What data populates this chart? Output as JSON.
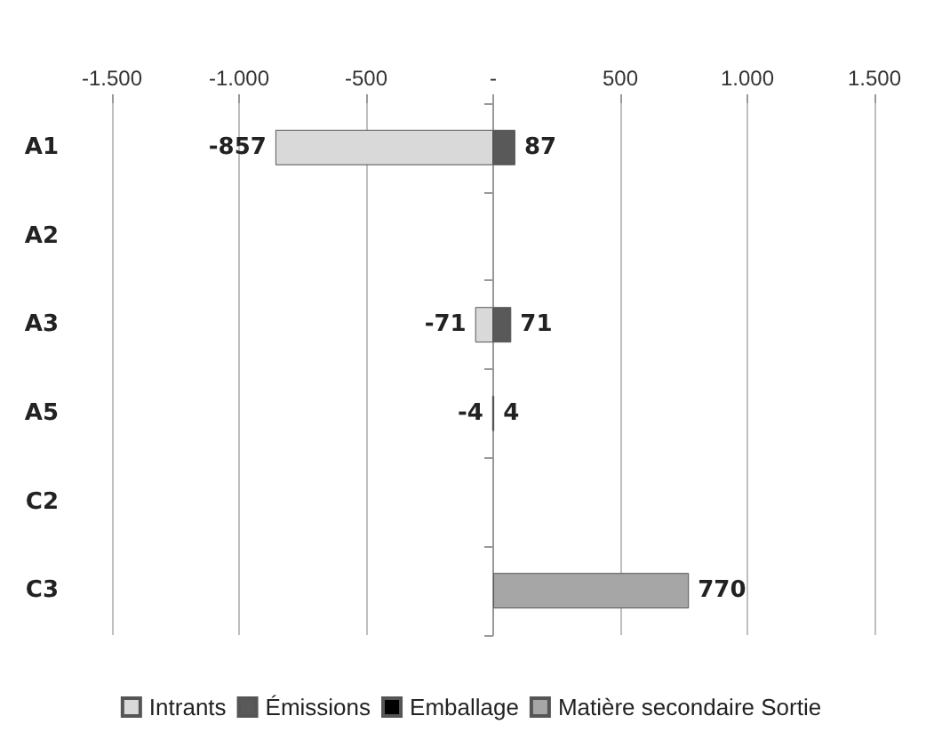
{
  "chart_data": {
    "type": "bar",
    "orientation": "horizontal",
    "stacked": true,
    "categories": [
      "A1",
      "A2",
      "A3",
      "A5",
      "C2",
      "C3"
    ],
    "series": [
      {
        "name": "Intrants",
        "color": "#d9d9d9",
        "values": [
          -857,
          null,
          -71,
          -4,
          null,
          null
        ]
      },
      {
        "name": "Émissions",
        "color": "#595959",
        "values": [
          87,
          null,
          71,
          4,
          null,
          null
        ]
      },
      {
        "name": "Emballage",
        "color": "#000000",
        "values": [
          null,
          null,
          null,
          null,
          null,
          null
        ]
      },
      {
        "name": "Matière secondaire Sortie",
        "color": "#a6a6a6",
        "values": [
          null,
          null,
          null,
          null,
          null,
          770
        ]
      }
    ],
    "xlim": [
      -1500,
      1500
    ],
    "xticks": [
      {
        "value": -1500,
        "label": "-1.500"
      },
      {
        "value": -1000,
        "label": "-1.000"
      },
      -500,
      {
        "value": 0,
        "label": "-"
      },
      500,
      {
        "value": 1000,
        "label": "1.000"
      },
      {
        "value": 1500,
        "label": "1.500"
      }
    ],
    "grid": "x",
    "legend": "bottom",
    "data_labels": true
  }
}
